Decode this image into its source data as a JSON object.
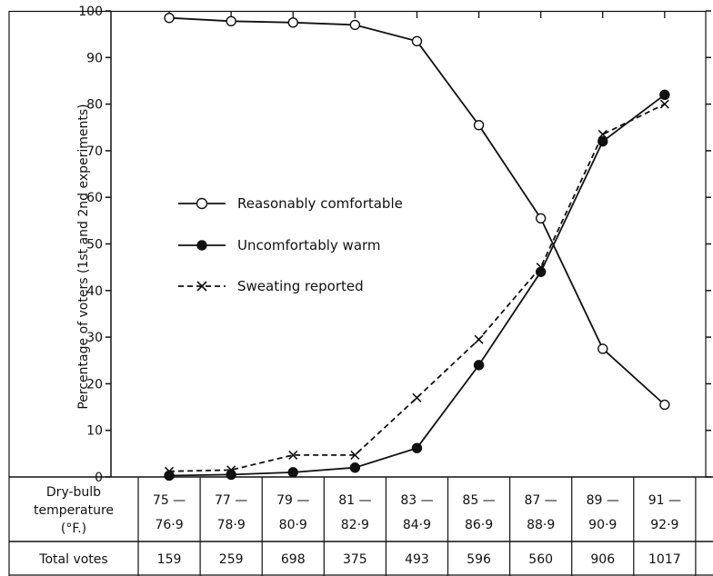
{
  "chart_data": {
    "type": "line",
    "ylabel": "Percentage of voters (1st and 2nd experiments)",
    "ylim": [
      0,
      100
    ],
    "yticks": [
      0,
      10,
      20,
      30,
      40,
      50,
      60,
      70,
      80,
      90,
      100
    ],
    "categories": [
      {
        "top": "75 —",
        "bottom": "76·9"
      },
      {
        "top": "77 —",
        "bottom": "78·9"
      },
      {
        "top": "79 —",
        "bottom": "80·9"
      },
      {
        "top": "81 —",
        "bottom": "82·9"
      },
      {
        "top": "83 —",
        "bottom": "84·9"
      },
      {
        "top": "85 —",
        "bottom": "86·9"
      },
      {
        "top": "87 —",
        "bottom": "88·9"
      },
      {
        "top": "89 —",
        "bottom": "90·9"
      },
      {
        "top": "91 —",
        "bottom": "92·9"
      }
    ],
    "xaxis_header": [
      "Dry-bulb",
      "temperature",
      "(°F.)"
    ],
    "total_votes_label": "Total votes",
    "total_votes": [
      159,
      259,
      698,
      375,
      493,
      596,
      560,
      906,
      1017
    ],
    "series": [
      {
        "name": "Reasonably comfortable",
        "marker": "open-circle",
        "dash": "solid",
        "values": [
          98.5,
          97.8,
          97.5,
          97.0,
          93.5,
          75.5,
          55.5,
          27.5,
          15.5
        ]
      },
      {
        "name": "Uncomfortably warm",
        "marker": "filled-circle",
        "dash": "solid",
        "values": [
          0.3,
          0.5,
          1.0,
          2.0,
          6.2,
          24.0,
          44.0,
          72.0,
          82.0
        ]
      },
      {
        "name": "Sweating reported",
        "marker": "cross",
        "dash": "dashed",
        "values": [
          1.2,
          1.5,
          4.7,
          4.7,
          17.0,
          29.5,
          45.0,
          73.5,
          80.0
        ]
      }
    ],
    "grid": false,
    "legend_position": "middle-left"
  }
}
